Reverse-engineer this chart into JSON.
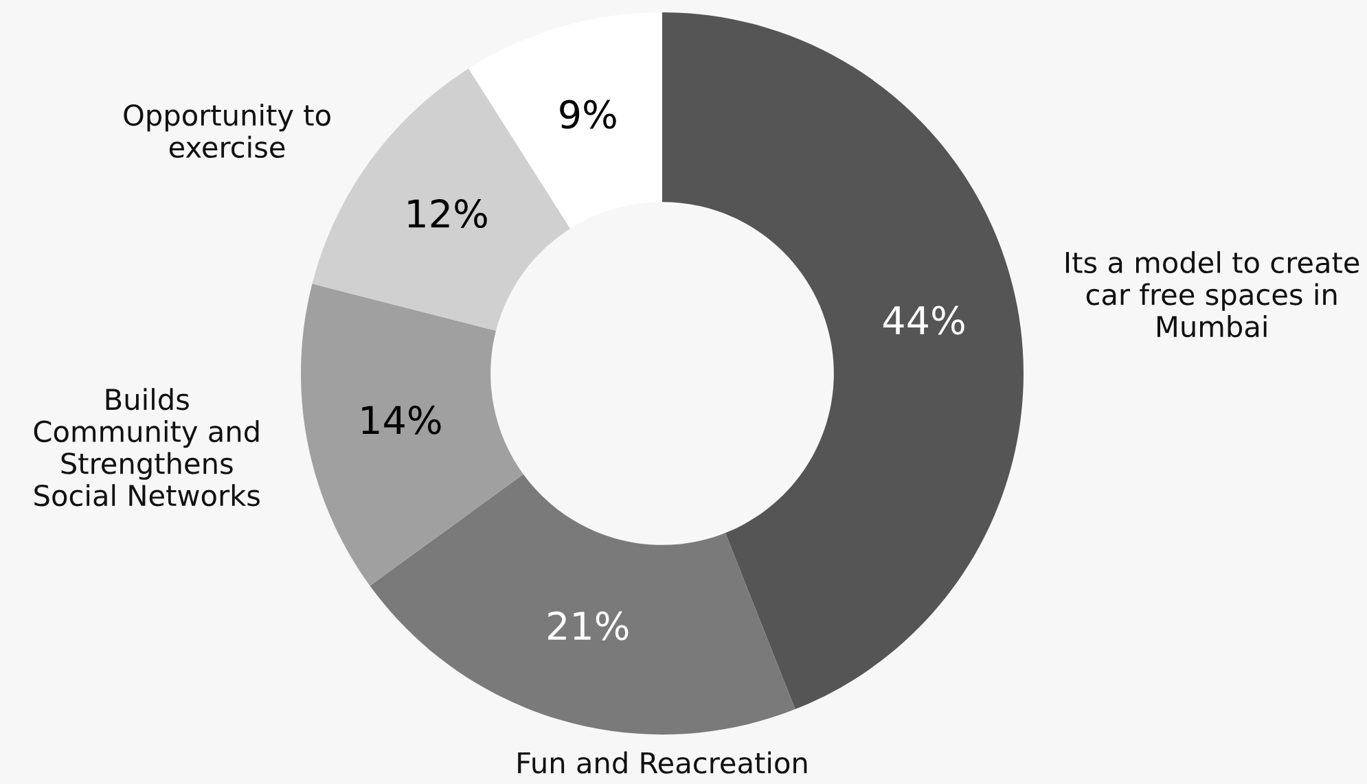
{
  "chart_data": {
    "type": "donut",
    "categories": [
      "Its a model to create\ncar free spaces in\nMumbai",
      "Fun and Reacreation",
      "Builds\nCommunity and\nStrengthens\nSocial Networks",
      "Opportunity to\nexercise",
      null
    ],
    "values": [
      44,
      21,
      14,
      12,
      9
    ],
    "value_labels": [
      "44%",
      "21%",
      "14%",
      "12%",
      "9%"
    ],
    "colors": [
      "#555555",
      "#7a7a7a",
      "#a0a0a0",
      "#d0d0d0",
      "#ffffff"
    ]
  }
}
